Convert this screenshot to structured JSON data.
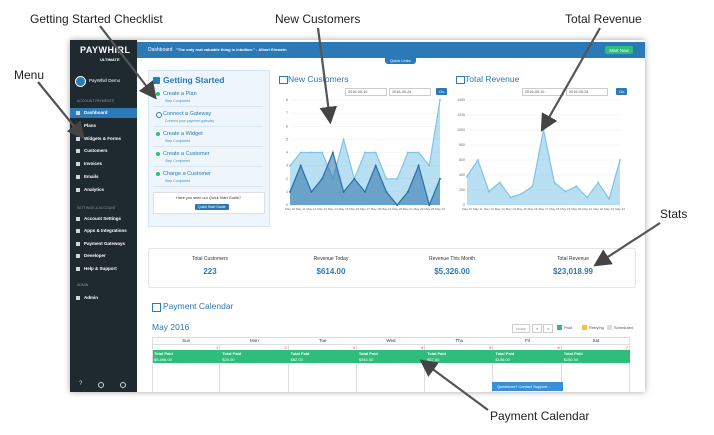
{
  "annotations": {
    "getting_started": "Getting Started Checklist",
    "new_customers": "New Customers",
    "total_revenue": "Total Revenue",
    "menu": "Menu",
    "stats": "Stats",
    "payment_calendar": "Payment Calendar"
  },
  "sidebar": {
    "logo": "PAYWHIRL",
    "edition": "ULTIMATE",
    "user": "PayWhirl Demo",
    "section1": "ACCOUNT PAYMENTS",
    "menu": [
      "Dashboard",
      "Plans",
      "Widgets & Forms",
      "Customers",
      "Invoices",
      "Emails",
      "Analytics"
    ],
    "section2": "SETTINGS & ACCOUNT",
    "settings": [
      "Account Settings",
      "Apps & Integrations",
      "Payment Gateways",
      "Developer",
      "Help & Support"
    ],
    "section3": "ADMIN",
    "admin": [
      "Admin"
    ],
    "help": "?"
  },
  "topbar": {
    "page": "Dashboard",
    "quote": "\"The only real valuable thing is intuition.\" - Albert Einstein",
    "quick_links": "Quick Links",
    "button": "Start Now"
  },
  "getting_started": {
    "title": "Getting Started",
    "steps": [
      {
        "label": "Create a Plan",
        "status": "Step Completed"
      },
      {
        "label": "Connect a Gateway",
        "status": "Connect your payment gateway"
      },
      {
        "label": "Create a Widget",
        "status": "Step Completed"
      },
      {
        "label": "Create a Customer",
        "status": "Step Completed"
      },
      {
        "label": "Charge a Customer",
        "status": "Step Completed"
      }
    ],
    "guide_text": "Have you seen our Quick Start Guide?",
    "guide_button": "Quick Start Guide"
  },
  "new_customers": {
    "title": "New Customers",
    "from": "2016-05-10",
    "to": "2016-05-24",
    "go": "Go",
    "categories": [
      "May 10",
      "May 11",
      "May 12",
      "May 13",
      "May 14",
      "May 15",
      "May 16",
      "May 17",
      "May 18",
      "May 19",
      "May 20",
      "May 21",
      "May 22",
      "May 23",
      "May 24"
    ],
    "ylim": [
      0,
      8
    ],
    "yticks": [
      0,
      1,
      2,
      3,
      4,
      5,
      6,
      7,
      8
    ],
    "series": [
      {
        "color": "#7fc4e8",
        "values": [
          3,
          4,
          4,
          4,
          2,
          5,
          2,
          4,
          4,
          2,
          2,
          4,
          4,
          3,
          8
        ]
      },
      {
        "color": "#2a6fa8",
        "values": [
          1,
          3,
          1,
          2,
          4,
          1,
          2,
          1,
          3,
          1,
          0,
          1,
          3,
          0,
          2
        ]
      }
    ]
  },
  "total_revenue": {
    "title": "Total Revenue",
    "from": "2016-05-10",
    "to": "2016-05-24",
    "go": "Go",
    "categories": [
      "May 10",
      "May 11",
      "May 12",
      "May 13",
      "May 14",
      "May 15",
      "May 16",
      "May 17",
      "May 18",
      "May 19",
      "May 20",
      "May 21",
      "May 22",
      "May 23",
      "May 24"
    ],
    "ylim": [
      0,
      1400
    ],
    "yticks": [
      0,
      200,
      400,
      600,
      800,
      1000,
      1200,
      1400
    ],
    "series": [
      {
        "color": "#7fc4e8",
        "values": [
          380,
          600,
          180,
          300,
          100,
          150,
          250,
          1000,
          300,
          180,
          250,
          100,
          300,
          80,
          600
        ]
      }
    ]
  },
  "stats": [
    {
      "label": "Total Customers",
      "value": "223"
    },
    {
      "label": "Revenue Today",
      "value": "$614.00"
    },
    {
      "label": "Revenue This Month",
      "value": "$5,326.00"
    },
    {
      "label": "Total Revenue",
      "value": "$23,018.99"
    }
  ],
  "calendar": {
    "title": "Payment Calendar",
    "month": "May 2016",
    "today": "today",
    "prev": "<",
    "next": ">",
    "legend": [
      {
        "name": "Paid",
        "color": "#2ebd7b"
      },
      {
        "name": "Retrying",
        "color": "#f3c338"
      },
      {
        "name": "Scheduled",
        "color": "#dddddd"
      }
    ],
    "days": [
      "Sun",
      "Mon",
      "Tue",
      "Wed",
      "Thu",
      "Fri",
      "Sat"
    ],
    "dates": [
      1,
      2,
      3,
      4,
      5,
      6,
      7
    ],
    "events": [
      {
        "label": "Total Paid",
        "amount": "$5,496.00"
      },
      {
        "label": "Total Paid",
        "amount": "$20.00"
      },
      {
        "label": "Total Paid",
        "amount": "$82.00"
      },
      {
        "label": "Total Paid",
        "amount": "$346.00"
      },
      {
        "label": "Total Paid",
        "amount": "$57.00"
      },
      {
        "label": "Total Paid",
        "amount": "$156.00"
      },
      {
        "label": "Total Paid",
        "amount": "$156.00"
      }
    ],
    "support": "Questions? Contact Support..."
  }
}
